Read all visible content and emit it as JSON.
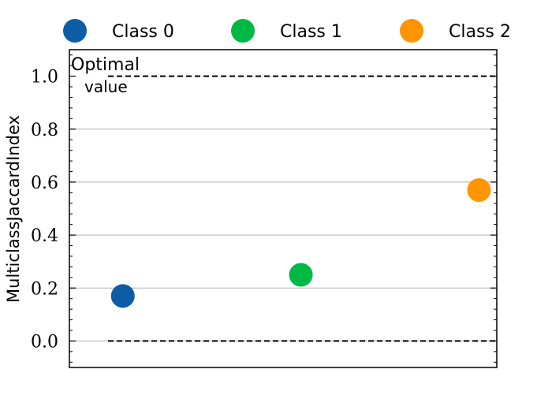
{
  "chart_data": {
    "type": "scatter",
    "ylabel": "MulticlassJaccardIndex",
    "xlabel": "",
    "ylim": [
      -0.1,
      1.1
    ],
    "yticks": [
      0.0,
      0.2,
      0.4,
      0.6,
      0.8,
      1.0
    ],
    "ytick_labels": [
      "0.0",
      "0.2",
      "0.4",
      "0.6",
      "0.8",
      "1.0"
    ],
    "grid": "horizontal",
    "legend_position": "top",
    "reference_lines": [
      {
        "y": 1.0,
        "style": "dashed",
        "label": "Optimal value"
      },
      {
        "y": 0.0,
        "style": "dashed",
        "label": ""
      }
    ],
    "annotation": {
      "line1": "Optimal",
      "line2": "value"
    },
    "series": [
      {
        "name": "Class 0",
        "x": 0,
        "y": 0.17,
        "color": "#0C5DA5"
      },
      {
        "name": "Class 1",
        "x": 1,
        "y": 0.25,
        "color": "#00B945"
      },
      {
        "name": "Class 2",
        "x": 2,
        "y": 0.57,
        "color": "#FF9500"
      }
    ]
  }
}
